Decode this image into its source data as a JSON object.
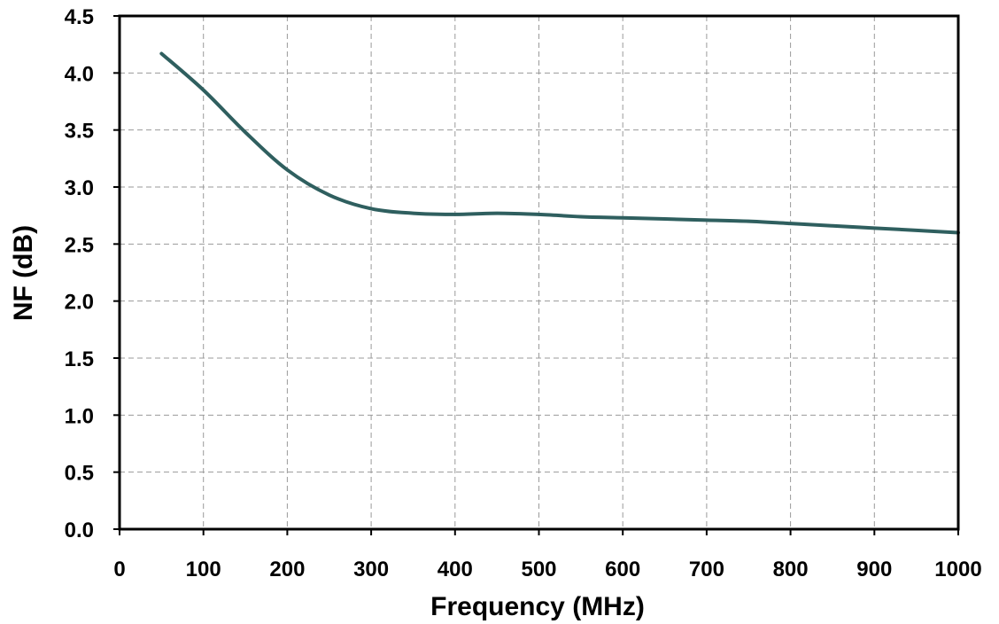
{
  "chart_data": {
    "type": "line",
    "title": "",
    "xlabel": "Frequency (MHz)",
    "ylabel": "NF (dB)",
    "xlim": [
      0,
      1000
    ],
    "ylim": [
      0,
      4.5
    ],
    "x_ticks": [
      0,
      100,
      200,
      300,
      400,
      500,
      600,
      700,
      800,
      900,
      1000
    ],
    "x_tick_labels": [
      "0",
      "100",
      "200",
      "300",
      "400",
      "500",
      "600",
      "700",
      "800",
      "900",
      "1000"
    ],
    "y_ticks": [
      0,
      0.5,
      1.0,
      1.5,
      2.0,
      2.5,
      3.0,
      3.5,
      4.0,
      4.5
    ],
    "y_tick_labels": [
      "0.0",
      "0.5",
      "1.0",
      "1.5",
      "2.0",
      "2.5",
      "3.0",
      "3.5",
      "4.0",
      "4.5"
    ],
    "grid": true,
    "legend": "none",
    "series": [
      {
        "color": "#2f5f5f",
        "x": [
          50,
          100,
          150,
          200,
          250,
          300,
          350,
          400,
          450,
          500,
          550,
          600,
          650,
          700,
          750,
          800,
          850,
          900,
          950,
          1000
        ],
        "y": [
          4.17,
          3.85,
          3.48,
          3.15,
          2.93,
          2.81,
          2.77,
          2.76,
          2.77,
          2.76,
          2.74,
          2.73,
          2.72,
          2.71,
          2.7,
          2.68,
          2.66,
          2.64,
          2.62,
          2.6
        ]
      }
    ]
  }
}
